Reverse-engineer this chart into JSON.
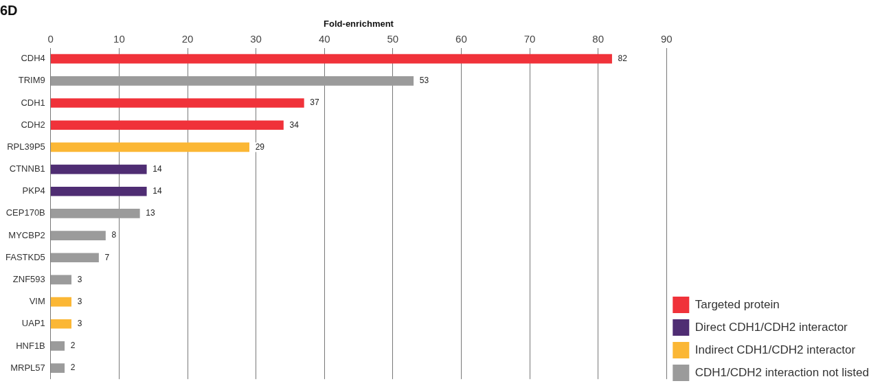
{
  "chart_data": {
    "type": "bar",
    "orientation": "horizontal",
    "stacked": true,
    "title": "6D",
    "xlabel": "Fold-enrichment",
    "categories": [
      "CDH4",
      "TRIM9",
      "CDH1",
      "CDH2",
      "RPL39P5",
      "CTNNB1",
      "PKP4",
      "CEP170B",
      "MYCBP2",
      "FASTKD5",
      "ZNF593",
      "VIM",
      "UAP1",
      "HNF1B",
      "MRPL57"
    ],
    "series": [
      {
        "name": "Targeted protein",
        "color": "#f0323a",
        "values": [
          82,
          null,
          37,
          34,
          null,
          null,
          null,
          null,
          null,
          null,
          null,
          null,
          null,
          null,
          null
        ]
      },
      {
        "name": "Direct CDH1/CDH2 interactor",
        "color": "#4f2d73",
        "values": [
          null,
          null,
          null,
          null,
          null,
          14,
          14,
          null,
          null,
          null,
          null,
          null,
          null,
          null,
          null
        ]
      },
      {
        "name": "Indirect CDH1/CDH2 interactor",
        "color": "#fbb735",
        "values": [
          null,
          null,
          null,
          null,
          29,
          null,
          null,
          null,
          null,
          null,
          null,
          3,
          3,
          null,
          null
        ]
      },
      {
        "name": "CDH1/CDH2 interaction not listed",
        "color": "#9b9b9b",
        "values": [
          null,
          53,
          null,
          null,
          null,
          null,
          null,
          13,
          8,
          7,
          3,
          null,
          null,
          2,
          2
        ]
      }
    ],
    "xlim": [
      0,
      90
    ],
    "xticks": [
      0,
      10,
      20,
      30,
      40,
      50,
      60,
      70,
      80,
      90
    ],
    "grid": "x",
    "legend": "bottom right",
    "data_labels": true
  }
}
